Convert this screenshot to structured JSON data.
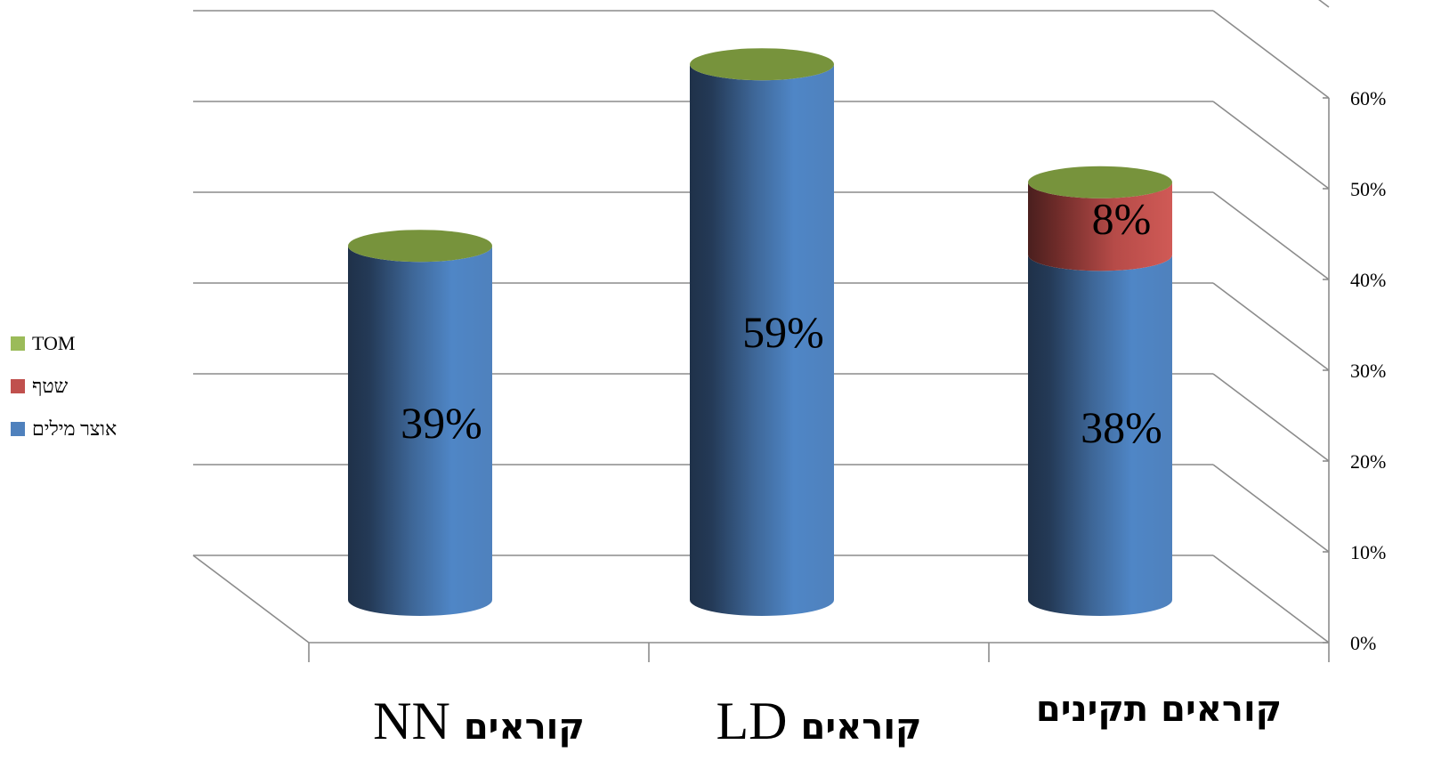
{
  "chart_data": {
    "type": "bar",
    "style": "3d-cylinder-stacked",
    "categories": [
      {
        "label_latin": "NN",
        "label_hebrew": "קוראים"
      },
      {
        "label_latin": "LD",
        "label_hebrew": "קוראים"
      },
      {
        "label_latin": "",
        "label_hebrew": "קוראים תקינים"
      }
    ],
    "series": [
      {
        "name": "אוצר מילים",
        "color": "#4F81BD",
        "values": [
          39,
          59,
          38
        ],
        "labels": [
          "39%",
          "59%",
          "38%"
        ]
      },
      {
        "name": "שטף",
        "color": "#C0504D",
        "values": [
          0,
          0,
          8
        ],
        "labels": [
          "",
          "",
          "8%"
        ]
      },
      {
        "name": "TOM",
        "color": "#9BBB59",
        "values": [
          0,
          0,
          0
        ],
        "labels": [
          "",
          "",
          ""
        ]
      }
    ],
    "y_ticks": [
      "0%",
      "10%",
      "20%",
      "30%",
      "40%",
      "50%",
      "60%"
    ],
    "ylim": [
      0,
      60
    ],
    "y_unit": "%",
    "grid": true,
    "legend_position": "left"
  }
}
